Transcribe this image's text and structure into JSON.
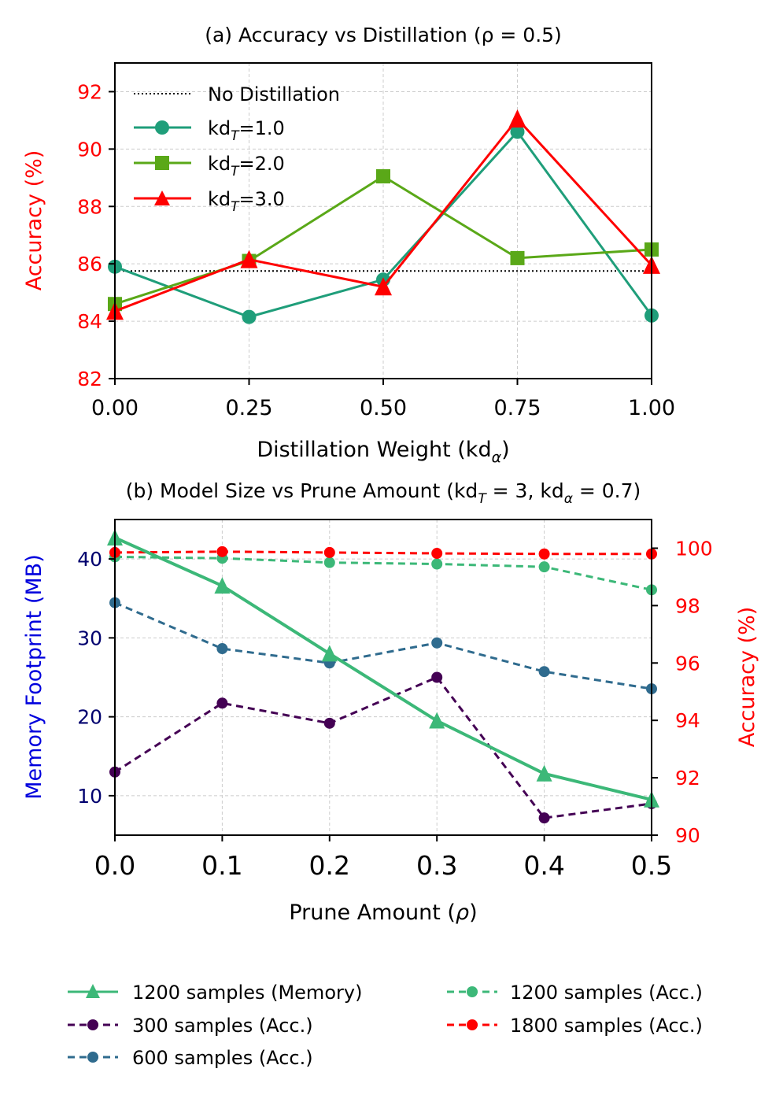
{
  "chart_data": [
    {
      "type": "line",
      "title": "(a) Accuracy vs Distillation (ρ = 0.5)",
      "xlabel": "Distillation Weight (kdα)",
      "ylabel": "Accuracy (%)",
      "ylabel_color": "#ff0000",
      "x": [
        0.0,
        0.25,
        0.5,
        0.75,
        1.0
      ],
      "xlim": [
        0.0,
        1.0
      ],
      "ylim": [
        82,
        93
      ],
      "xticks": [
        "0.00",
        "0.25",
        "0.50",
        "0.75",
        "1.00"
      ],
      "yticks": [
        "82",
        "84",
        "86",
        "88",
        "90",
        "92"
      ],
      "grid": true,
      "baseline": {
        "name": "No Distillation",
        "value": 85.75,
        "color": "#000000",
        "style": "dotted"
      },
      "series": [
        {
          "name": "kdT=1.0",
          "color": "#1f9e7a",
          "marker": "circle",
          "values": [
            85.9,
            84.15,
            85.45,
            90.6,
            84.2
          ]
        },
        {
          "name": "kdT=2.0",
          "color": "#5aa818",
          "marker": "square",
          "values": [
            84.6,
            86.1,
            89.05,
            86.2,
            86.5
          ]
        },
        {
          "name": "kdT=3.0",
          "color": "#ff0000",
          "marker": "triangle",
          "values": [
            84.35,
            86.15,
            85.2,
            91.05,
            85.95
          ]
        }
      ],
      "legend": {
        "placement": "top-left",
        "labels": [
          "No Distillation",
          "kdT=1.0",
          "kdT=2.0",
          "kdT=3.0"
        ]
      }
    },
    {
      "type": "line",
      "title": "(b) Model Size vs Prune Amount (kdT = 3, kdα = 0.7)",
      "xlabel": "Prune Amount (ρ)",
      "ylabel_left": "Memory Footprint (MB)",
      "ylabel_left_color": "#0000dd",
      "ylabel_right": "Accuracy (%)",
      "ylabel_right_color": "#ff0000",
      "x": [
        0.0,
        0.1,
        0.2,
        0.3,
        0.4,
        0.5
      ],
      "xlim": [
        0.0,
        0.5
      ],
      "ylim_left": [
        5,
        45
      ],
      "ylim_right": [
        90,
        101
      ],
      "xticks": [
        "0.0",
        "0.1",
        "0.2",
        "0.3",
        "0.4",
        "0.5"
      ],
      "yticks_left": [
        "10",
        "20",
        "30",
        "40"
      ],
      "yticks_right": [
        "90",
        "92",
        "94",
        "96",
        "98",
        "100"
      ],
      "grid": true,
      "series": [
        {
          "name": "1200 samples (Memory)",
          "axis": "left",
          "color": "#3cb878",
          "marker": "triangle",
          "style": "solid",
          "values": [
            42.7,
            36.6,
            28.0,
            19.5,
            12.8,
            9.5
          ]
        },
        {
          "name": "300 samples (Acc.)",
          "axis": "right",
          "color": "#440154",
          "marker": "circle",
          "style": "dashed",
          "values": [
            92.2,
            94.6,
            93.9,
            95.5,
            90.6,
            91.1
          ]
        },
        {
          "name": "600 samples (Acc.)",
          "axis": "right",
          "color": "#2f6b8e",
          "marker": "circle",
          "style": "dashed",
          "values": [
            98.1,
            96.5,
            96.0,
            96.7,
            95.7,
            95.1
          ]
        },
        {
          "name": "1200 samples (Acc.)",
          "axis": "right",
          "color": "#3cb878",
          "marker": "circle",
          "style": "dashed",
          "values": [
            99.7,
            99.65,
            99.5,
            99.45,
            99.35,
            98.55
          ]
        },
        {
          "name": "1800 samples (Acc.)",
          "axis": "right",
          "color": "#ff0000",
          "marker": "circle",
          "style": "dashed",
          "values": [
            99.85,
            99.88,
            99.85,
            99.82,
            99.8,
            99.8
          ]
        }
      ],
      "legend": {
        "placement": "below",
        "labels": [
          "1200 samples (Memory)",
          "300 samples (Acc.)",
          "600 samples (Acc.)",
          "1200 samples (Acc.)",
          "1800 samples (Acc.)"
        ]
      }
    }
  ]
}
